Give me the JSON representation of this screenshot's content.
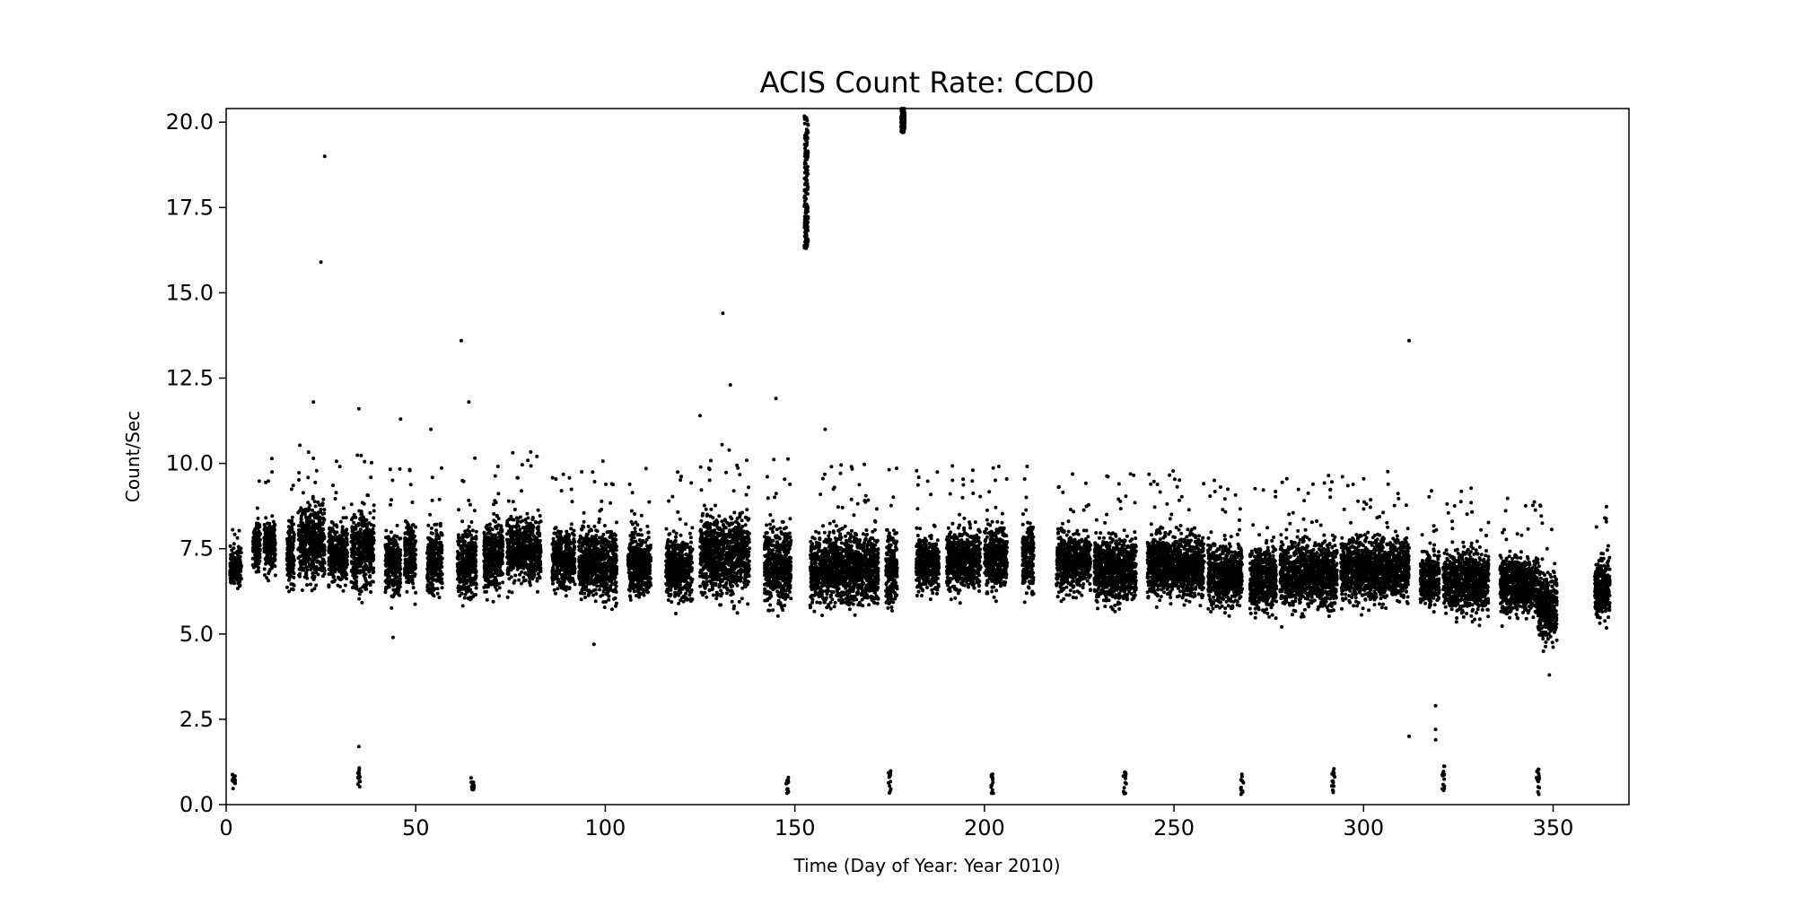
{
  "chart_data": {
    "type": "scatter",
    "title": "ACIS Count Rate: CCD0",
    "xlabel": "Time (Day of Year: Year 2010)",
    "ylabel": "Count/Sec",
    "xlim": [
      0,
      370
    ],
    "ylim": [
      0,
      20.4
    ],
    "xticks": [
      "0",
      "50",
      "100",
      "150",
      "200",
      "250",
      "300",
      "350"
    ],
    "yticks": [
      "0.0",
      "2.5",
      "5.0",
      "7.5",
      "10.0",
      "12.5",
      "15.0",
      "17.5",
      "20.0"
    ],
    "grid": false,
    "legend": "none",
    "marker_color": "#000000",
    "observation_bands": [
      {
        "x": [
          1,
          4
        ],
        "y": [
          6.2,
          7.8
        ]
      },
      {
        "x": [
          7,
          9
        ],
        "y": [
          6.6,
          8.6
        ]
      },
      {
        "x": [
          10,
          13
        ],
        "y": [
          6.5,
          8.6
        ]
      },
      {
        "x": [
          16,
          18
        ],
        "y": [
          6.0,
          8.8
        ]
      },
      {
        "x": [
          19,
          26
        ],
        "y": [
          6.1,
          9.2
        ]
      },
      {
        "x": [
          27,
          32
        ],
        "y": [
          6.1,
          8.6
        ]
      },
      {
        "x": [
          33,
          39
        ],
        "y": [
          5.9,
          9.0
        ]
      },
      {
        "x": [
          42,
          46
        ],
        "y": [
          5.7,
          8.4
        ]
      },
      {
        "x": [
          47,
          50
        ],
        "y": [
          5.8,
          8.8
        ]
      },
      {
        "x": [
          53,
          57
        ],
        "y": [
          5.8,
          8.4
        ]
      },
      {
        "x": [
          61,
          66
        ],
        "y": [
          5.6,
          8.6
        ]
      },
      {
        "x": [
          68,
          73
        ],
        "y": [
          5.8,
          8.8
        ]
      },
      {
        "x": [
          74,
          83
        ],
        "y": [
          6.1,
          8.8
        ]
      },
      {
        "x": [
          86,
          92
        ],
        "y": [
          6.0,
          8.4
        ]
      },
      {
        "x": [
          93,
          103
        ],
        "y": [
          5.6,
          8.5
        ]
      },
      {
        "x": [
          106,
          112
        ],
        "y": [
          5.7,
          8.4
        ]
      },
      {
        "x": [
          116,
          123
        ],
        "y": [
          5.6,
          8.3
        ]
      },
      {
        "x": [
          125,
          138
        ],
        "y": [
          5.6,
          9.0
        ]
      },
      {
        "x": [
          142,
          149
        ],
        "y": [
          5.4,
          8.6
        ]
      },
      {
        "x": [
          154,
          172
        ],
        "y": [
          5.4,
          8.4
        ]
      },
      {
        "x": [
          174,
          177
        ],
        "y": [
          5.4,
          8.4
        ]
      },
      {
        "x": [
          182,
          188
        ],
        "y": [
          6.0,
          8.2
        ]
      },
      {
        "x": [
          190,
          199
        ],
        "y": [
          5.9,
          8.4
        ]
      },
      {
        "x": [
          200,
          206
        ],
        "y": [
          5.9,
          8.5
        ]
      },
      {
        "x": [
          210,
          213
        ],
        "y": [
          5.8,
          8.6
        ]
      },
      {
        "x": [
          219,
          228
        ],
        "y": [
          5.9,
          8.3
        ]
      },
      {
        "x": [
          229,
          240
        ],
        "y": [
          5.6,
          8.2
        ]
      },
      {
        "x": [
          243,
          258
        ],
        "y": [
          5.7,
          8.3
        ]
      },
      {
        "x": [
          259,
          268
        ],
        "y": [
          5.4,
          8.0
        ]
      },
      {
        "x": [
          270,
          277
        ],
        "y": [
          5.3,
          7.8
        ]
      },
      {
        "x": [
          278,
          293
        ],
        "y": [
          5.3,
          8.2
        ]
      },
      {
        "x": [
          294,
          312
        ],
        "y": [
          5.6,
          8.2
        ]
      },
      {
        "x": [
          315,
          320
        ],
        "y": [
          5.5,
          7.8
        ]
      },
      {
        "x": [
          321,
          333
        ],
        "y": [
          5.3,
          7.8
        ]
      },
      {
        "x": [
          336,
          346
        ],
        "y": [
          5.2,
          7.6
        ]
      },
      {
        "x": [
          346,
          351
        ],
        "y": [
          4.4,
          7.2
        ]
      },
      {
        "x": [
          361,
          365
        ],
        "y": [
          5.1,
          7.6
        ]
      }
    ],
    "low_clusters": [
      {
        "x": 2,
        "y": [
          0.4,
          0.9
        ]
      },
      {
        "x": 35,
        "y": [
          0.5,
          1.1
        ]
      },
      {
        "x": 65,
        "y": [
          0.4,
          0.8
        ]
      },
      {
        "x": 148,
        "y": [
          0.3,
          0.8
        ]
      },
      {
        "x": 175,
        "y": [
          0.3,
          1.0
        ]
      },
      {
        "x": 202,
        "y": [
          0.3,
          0.9
        ]
      },
      {
        "x": 237,
        "y": [
          0.3,
          1.1
        ]
      },
      {
        "x": 268,
        "y": [
          0.3,
          0.9
        ]
      },
      {
        "x": 292,
        "y": [
          0.3,
          1.1
        ]
      },
      {
        "x": 321,
        "y": [
          0.3,
          1.2
        ]
      },
      {
        "x": 346,
        "y": [
          0.3,
          1.1
        ]
      }
    ],
    "flare_clusters": [
      {
        "x": [
          152.5,
          153.5
        ],
        "y": [
          16.3,
          20.2
        ]
      },
      {
        "x": [
          178,
          179
        ],
        "y": [
          19.7,
          20.4
        ]
      }
    ],
    "outliers": [
      {
        "x": 26,
        "y": 19.0
      },
      {
        "x": 25,
        "y": 15.9
      },
      {
        "x": 62,
        "y": 13.6
      },
      {
        "x": 131,
        "y": 14.4
      },
      {
        "x": 133,
        "y": 12.3
      },
      {
        "x": 145,
        "y": 11.9
      },
      {
        "x": 312,
        "y": 13.6
      },
      {
        "x": 23,
        "y": 11.8
      },
      {
        "x": 35,
        "y": 11.6
      },
      {
        "x": 64,
        "y": 11.8
      },
      {
        "x": 46,
        "y": 11.3
      },
      {
        "x": 54,
        "y": 11.0
      },
      {
        "x": 158,
        "y": 11.0
      },
      {
        "x": 125,
        "y": 11.4
      },
      {
        "x": 35,
        "y": 1.7
      },
      {
        "x": 312,
        "y": 2.0
      },
      {
        "x": 319,
        "y": 2.9
      },
      {
        "x": 319,
        "y": 2.2
      },
      {
        "x": 319,
        "y": 1.9
      },
      {
        "x": 349,
        "y": 3.8
      },
      {
        "x": 97,
        "y": 4.7
      },
      {
        "x": 44,
        "y": 4.9
      }
    ]
  }
}
